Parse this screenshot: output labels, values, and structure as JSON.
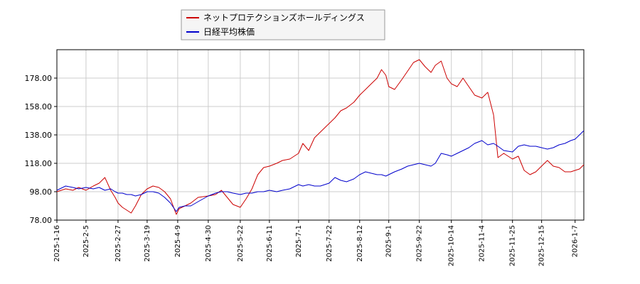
{
  "chart_data": {
    "type": "line",
    "title": "",
    "xlabel": "",
    "ylabel": "",
    "legend_position": "top-center",
    "grid": true,
    "ylim": [
      78,
      198
    ],
    "xlim": [
      "2025-01-16",
      "2026-01-13"
    ],
    "y_ticks": [
      "78.00",
      "98.00",
      "118.00",
      "138.00",
      "158.00",
      "178.00"
    ],
    "x_ticks": [
      "2025-1-16",
      "2025-2-5",
      "2025-2-27",
      "2025-3-19",
      "2025-4-9",
      "2025-4-30",
      "2025-5-22",
      "2025-6-11",
      "2025-7-1",
      "2025-7-22",
      "2025-8-12",
      "2025-9-1",
      "2025-9-22",
      "2025-10-14",
      "2025-11-4",
      "2025-11-25",
      "2025-12-15",
      "2026-1-7"
    ],
    "series": [
      {
        "name": "ネットプロテクションズホールディングス",
        "color": "#cc0000",
        "points": [
          [
            "2025-01-16",
            98
          ],
          [
            "2025-01-22",
            100
          ],
          [
            "2025-01-27",
            99
          ],
          [
            "2025-01-31",
            101
          ],
          [
            "2025-02-05",
            99
          ],
          [
            "2025-02-10",
            102
          ],
          [
            "2025-02-14",
            104
          ],
          [
            "2025-02-18",
            108
          ],
          [
            "2025-02-22",
            99
          ],
          [
            "2025-02-25",
            94
          ],
          [
            "2025-02-27",
            90
          ],
          [
            "2025-03-02",
            87
          ],
          [
            "2025-03-05",
            85
          ],
          [
            "2025-03-08",
            83
          ],
          [
            "2025-03-11",
            88
          ],
          [
            "2025-03-15",
            96
          ],
          [
            "2025-03-19",
            100
          ],
          [
            "2025-03-23",
            102
          ],
          [
            "2025-03-27",
            101
          ],
          [
            "2025-03-31",
            98
          ],
          [
            "2025-04-04",
            93
          ],
          [
            "2025-04-08",
            82
          ],
          [
            "2025-04-10",
            86
          ],
          [
            "2025-04-14",
            88
          ],
          [
            "2025-04-18",
            90
          ],
          [
            "2025-04-23",
            94
          ],
          [
            "2025-04-30",
            95
          ],
          [
            "2025-05-05",
            96
          ],
          [
            "2025-05-09",
            99
          ],
          [
            "2025-05-13",
            94
          ],
          [
            "2025-05-17",
            89
          ],
          [
            "2025-05-22",
            87
          ],
          [
            "2025-05-26",
            93
          ],
          [
            "2025-05-30",
            100
          ],
          [
            "2025-06-03",
            110
          ],
          [
            "2025-06-07",
            115
          ],
          [
            "2025-06-11",
            116
          ],
          [
            "2025-06-16",
            118
          ],
          [
            "2025-06-20",
            120
          ],
          [
            "2025-06-25",
            121
          ],
          [
            "2025-07-01",
            125
          ],
          [
            "2025-07-04",
            132
          ],
          [
            "2025-07-08",
            127
          ],
          [
            "2025-07-12",
            136
          ],
          [
            "2025-07-16",
            140
          ],
          [
            "2025-07-22",
            146
          ],
          [
            "2025-07-26",
            150
          ],
          [
            "2025-07-30",
            155
          ],
          [
            "2025-08-03",
            157
          ],
          [
            "2025-08-08",
            161
          ],
          [
            "2025-08-12",
            166
          ],
          [
            "2025-08-16",
            170
          ],
          [
            "2025-08-20",
            174
          ],
          [
            "2025-08-24",
            178
          ],
          [
            "2025-08-27",
            184
          ],
          [
            "2025-08-30",
            180
          ],
          [
            "2025-09-01",
            172
          ],
          [
            "2025-09-05",
            170
          ],
          [
            "2025-09-10",
            177
          ],
          [
            "2025-09-14",
            183
          ],
          [
            "2025-09-18",
            189
          ],
          [
            "2025-09-22",
            191
          ],
          [
            "2025-09-26",
            186
          ],
          [
            "2025-09-30",
            182
          ],
          [
            "2025-10-03",
            187
          ],
          [
            "2025-10-07",
            190
          ],
          [
            "2025-10-11",
            178
          ],
          [
            "2025-10-14",
            174
          ],
          [
            "2025-10-18",
            172
          ],
          [
            "2025-10-22",
            178
          ],
          [
            "2025-10-26",
            172
          ],
          [
            "2025-10-30",
            166
          ],
          [
            "2025-11-04",
            164
          ],
          [
            "2025-11-08",
            168
          ],
          [
            "2025-11-12",
            152
          ],
          [
            "2025-11-15",
            122
          ],
          [
            "2025-11-19",
            125
          ],
          [
            "2025-11-25",
            121
          ],
          [
            "2025-11-29",
            123
          ],
          [
            "2025-12-03",
            113
          ],
          [
            "2025-12-07",
            110
          ],
          [
            "2025-12-11",
            112
          ],
          [
            "2025-12-15",
            116
          ],
          [
            "2025-12-19",
            120
          ],
          [
            "2025-12-23",
            116
          ],
          [
            "2025-12-27",
            115
          ],
          [
            "2025-12-31",
            112
          ],
          [
            "2026-01-04",
            112
          ],
          [
            "2026-01-07",
            113
          ],
          [
            "2026-01-10",
            114
          ],
          [
            "2026-01-13",
            117
          ]
        ]
      },
      {
        "name": "日経平均株価",
        "color": "#0000cc",
        "points": [
          [
            "2025-01-16",
            99
          ],
          [
            "2025-01-22",
            102
          ],
          [
            "2025-01-27",
            101
          ],
          [
            "2025-01-31",
            100
          ],
          [
            "2025-02-05",
            101
          ],
          [
            "2025-02-10",
            100
          ],
          [
            "2025-02-14",
            101
          ],
          [
            "2025-02-18",
            99
          ],
          [
            "2025-02-22",
            100
          ],
          [
            "2025-02-25",
            98
          ],
          [
            "2025-02-27",
            97
          ],
          [
            "2025-03-02",
            97
          ],
          [
            "2025-03-05",
            96
          ],
          [
            "2025-03-08",
            96
          ],
          [
            "2025-03-11",
            95
          ],
          [
            "2025-03-15",
            96
          ],
          [
            "2025-03-19",
            98
          ],
          [
            "2025-03-23",
            98
          ],
          [
            "2025-03-27",
            97
          ],
          [
            "2025-03-31",
            94
          ],
          [
            "2025-04-04",
            90
          ],
          [
            "2025-04-08",
            84
          ],
          [
            "2025-04-10",
            87
          ],
          [
            "2025-04-14",
            88
          ],
          [
            "2025-04-18",
            88
          ],
          [
            "2025-04-23",
            91
          ],
          [
            "2025-04-30",
            95
          ],
          [
            "2025-05-05",
            97
          ],
          [
            "2025-05-09",
            98
          ],
          [
            "2025-05-13",
            98
          ],
          [
            "2025-05-17",
            97
          ],
          [
            "2025-05-22",
            96
          ],
          [
            "2025-05-26",
            97
          ],
          [
            "2025-05-30",
            97
          ],
          [
            "2025-06-03",
            98
          ],
          [
            "2025-06-07",
            98
          ],
          [
            "2025-06-11",
            99
          ],
          [
            "2025-06-16",
            98
          ],
          [
            "2025-06-20",
            99
          ],
          [
            "2025-06-25",
            100
          ],
          [
            "2025-07-01",
            103
          ],
          [
            "2025-07-04",
            102
          ],
          [
            "2025-07-08",
            103
          ],
          [
            "2025-07-12",
            102
          ],
          [
            "2025-07-16",
            102
          ],
          [
            "2025-07-22",
            104
          ],
          [
            "2025-07-26",
            108
          ],
          [
            "2025-07-30",
            106
          ],
          [
            "2025-08-03",
            105
          ],
          [
            "2025-08-08",
            107
          ],
          [
            "2025-08-12",
            110
          ],
          [
            "2025-08-16",
            112
          ],
          [
            "2025-08-20",
            111
          ],
          [
            "2025-08-24",
            110
          ],
          [
            "2025-08-27",
            110
          ],
          [
            "2025-08-30",
            109
          ],
          [
            "2025-09-01",
            110
          ],
          [
            "2025-09-05",
            112
          ],
          [
            "2025-09-10",
            114
          ],
          [
            "2025-09-14",
            116
          ],
          [
            "2025-09-18",
            117
          ],
          [
            "2025-09-22",
            118
          ],
          [
            "2025-09-26",
            117
          ],
          [
            "2025-09-30",
            116
          ],
          [
            "2025-10-03",
            118
          ],
          [
            "2025-10-07",
            125
          ],
          [
            "2025-10-11",
            124
          ],
          [
            "2025-10-14",
            123
          ],
          [
            "2025-10-18",
            125
          ],
          [
            "2025-10-22",
            127
          ],
          [
            "2025-10-26",
            129
          ],
          [
            "2025-10-30",
            132
          ],
          [
            "2025-11-04",
            134
          ],
          [
            "2025-11-08",
            131
          ],
          [
            "2025-11-12",
            132
          ],
          [
            "2025-11-15",
            130
          ],
          [
            "2025-11-19",
            127
          ],
          [
            "2025-11-25",
            126
          ],
          [
            "2025-11-29",
            130
          ],
          [
            "2025-12-03",
            131
          ],
          [
            "2025-12-07",
            130
          ],
          [
            "2025-12-11",
            130
          ],
          [
            "2025-12-15",
            129
          ],
          [
            "2025-12-19",
            128
          ],
          [
            "2025-12-23",
            129
          ],
          [
            "2025-12-27",
            131
          ],
          [
            "2025-12-31",
            132
          ],
          [
            "2026-01-04",
            134
          ],
          [
            "2026-01-07",
            135
          ],
          [
            "2026-01-10",
            138
          ],
          [
            "2026-01-13",
            141
          ]
        ]
      }
    ]
  }
}
